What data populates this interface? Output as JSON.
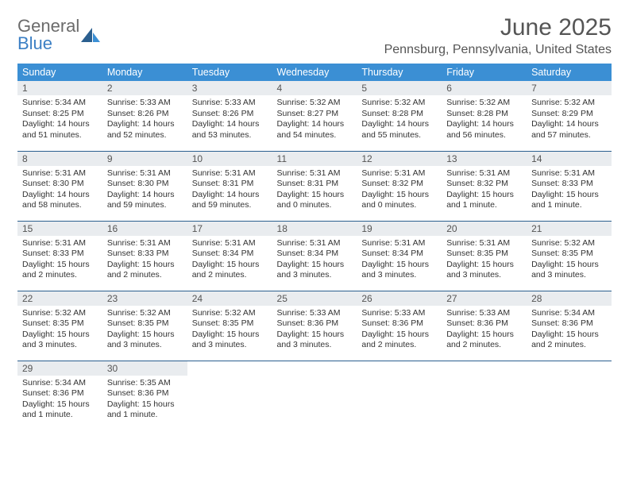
{
  "logo": {
    "text1": "General",
    "text2": "Blue"
  },
  "title": "June 2025",
  "location": "Pennsburg, Pennsylvania, United States",
  "colors": {
    "header_bg": "#3b8fd4",
    "header_fg": "#ffffff",
    "daynum_bg": "#e9ecef",
    "row_border": "#2b5f8f",
    "text": "#333333",
    "title_color": "#555555"
  },
  "weekdays": [
    "Sunday",
    "Monday",
    "Tuesday",
    "Wednesday",
    "Thursday",
    "Friday",
    "Saturday"
  ],
  "weeks": [
    [
      {
        "num": "1",
        "sunrise": "5:34 AM",
        "sunset": "8:25 PM",
        "daylight": "14 hours and 51 minutes."
      },
      {
        "num": "2",
        "sunrise": "5:33 AM",
        "sunset": "8:26 PM",
        "daylight": "14 hours and 52 minutes."
      },
      {
        "num": "3",
        "sunrise": "5:33 AM",
        "sunset": "8:26 PM",
        "daylight": "14 hours and 53 minutes."
      },
      {
        "num": "4",
        "sunrise": "5:32 AM",
        "sunset": "8:27 PM",
        "daylight": "14 hours and 54 minutes."
      },
      {
        "num": "5",
        "sunrise": "5:32 AM",
        "sunset": "8:28 PM",
        "daylight": "14 hours and 55 minutes."
      },
      {
        "num": "6",
        "sunrise": "5:32 AM",
        "sunset": "8:28 PM",
        "daylight": "14 hours and 56 minutes."
      },
      {
        "num": "7",
        "sunrise": "5:32 AM",
        "sunset": "8:29 PM",
        "daylight": "14 hours and 57 minutes."
      }
    ],
    [
      {
        "num": "8",
        "sunrise": "5:31 AM",
        "sunset": "8:30 PM",
        "daylight": "14 hours and 58 minutes."
      },
      {
        "num": "9",
        "sunrise": "5:31 AM",
        "sunset": "8:30 PM",
        "daylight": "14 hours and 59 minutes."
      },
      {
        "num": "10",
        "sunrise": "5:31 AM",
        "sunset": "8:31 PM",
        "daylight": "14 hours and 59 minutes."
      },
      {
        "num": "11",
        "sunrise": "5:31 AM",
        "sunset": "8:31 PM",
        "daylight": "15 hours and 0 minutes."
      },
      {
        "num": "12",
        "sunrise": "5:31 AM",
        "sunset": "8:32 PM",
        "daylight": "15 hours and 0 minutes."
      },
      {
        "num": "13",
        "sunrise": "5:31 AM",
        "sunset": "8:32 PM",
        "daylight": "15 hours and 1 minute."
      },
      {
        "num": "14",
        "sunrise": "5:31 AM",
        "sunset": "8:33 PM",
        "daylight": "15 hours and 1 minute."
      }
    ],
    [
      {
        "num": "15",
        "sunrise": "5:31 AM",
        "sunset": "8:33 PM",
        "daylight": "15 hours and 2 minutes."
      },
      {
        "num": "16",
        "sunrise": "5:31 AM",
        "sunset": "8:33 PM",
        "daylight": "15 hours and 2 minutes."
      },
      {
        "num": "17",
        "sunrise": "5:31 AM",
        "sunset": "8:34 PM",
        "daylight": "15 hours and 2 minutes."
      },
      {
        "num": "18",
        "sunrise": "5:31 AM",
        "sunset": "8:34 PM",
        "daylight": "15 hours and 3 minutes."
      },
      {
        "num": "19",
        "sunrise": "5:31 AM",
        "sunset": "8:34 PM",
        "daylight": "15 hours and 3 minutes."
      },
      {
        "num": "20",
        "sunrise": "5:31 AM",
        "sunset": "8:35 PM",
        "daylight": "15 hours and 3 minutes."
      },
      {
        "num": "21",
        "sunrise": "5:32 AM",
        "sunset": "8:35 PM",
        "daylight": "15 hours and 3 minutes."
      }
    ],
    [
      {
        "num": "22",
        "sunrise": "5:32 AM",
        "sunset": "8:35 PM",
        "daylight": "15 hours and 3 minutes."
      },
      {
        "num": "23",
        "sunrise": "5:32 AM",
        "sunset": "8:35 PM",
        "daylight": "15 hours and 3 minutes."
      },
      {
        "num": "24",
        "sunrise": "5:32 AM",
        "sunset": "8:35 PM",
        "daylight": "15 hours and 3 minutes."
      },
      {
        "num": "25",
        "sunrise": "5:33 AM",
        "sunset": "8:36 PM",
        "daylight": "15 hours and 3 minutes."
      },
      {
        "num": "26",
        "sunrise": "5:33 AM",
        "sunset": "8:36 PM",
        "daylight": "15 hours and 2 minutes."
      },
      {
        "num": "27",
        "sunrise": "5:33 AM",
        "sunset": "8:36 PM",
        "daylight": "15 hours and 2 minutes."
      },
      {
        "num": "28",
        "sunrise": "5:34 AM",
        "sunset": "8:36 PM",
        "daylight": "15 hours and 2 minutes."
      }
    ],
    [
      {
        "num": "29",
        "sunrise": "5:34 AM",
        "sunset": "8:36 PM",
        "daylight": "15 hours and 1 minute."
      },
      {
        "num": "30",
        "sunrise": "5:35 AM",
        "sunset": "8:36 PM",
        "daylight": "15 hours and 1 minute."
      },
      null,
      null,
      null,
      null,
      null
    ]
  ],
  "labels": {
    "sunrise": "Sunrise: ",
    "sunset": "Sunset: ",
    "daylight": "Daylight: "
  }
}
